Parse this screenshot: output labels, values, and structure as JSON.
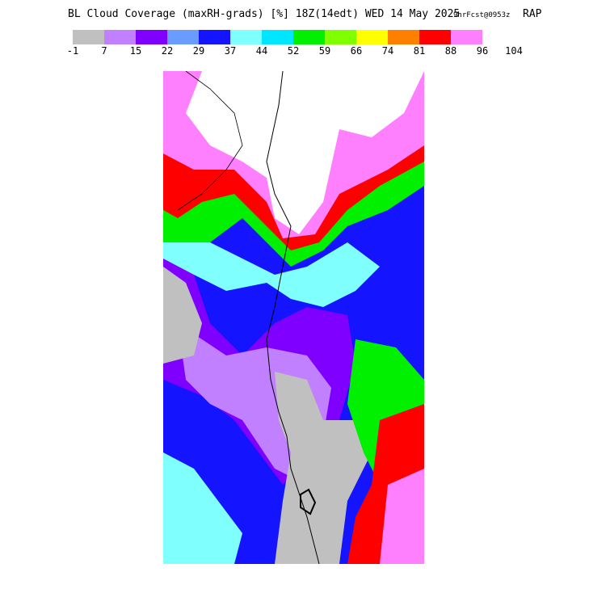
{
  "header": {
    "title": "BL Cloud Coverage (maxRH-grads) [%] 18Z(14edt) WED 14 May 2025",
    "forecast": "9hrFcst@0953z",
    "model": "RAP"
  },
  "colorbar": {
    "colors": [
      "#c0c0c0",
      "#c080ff",
      "#8000ff",
      "#6a9cff",
      "#1414ff",
      "#80ffff",
      "#00e6ff",
      "#00f000",
      "#80ff00",
      "#ffff00",
      "#ff8000",
      "#ff0000",
      "#ff80ff"
    ],
    "labels": [
      -1,
      7,
      15,
      22,
      29,
      37,
      44,
      52,
      59,
      66,
      74,
      81,
      88,
      96,
      104
    ]
  }
}
